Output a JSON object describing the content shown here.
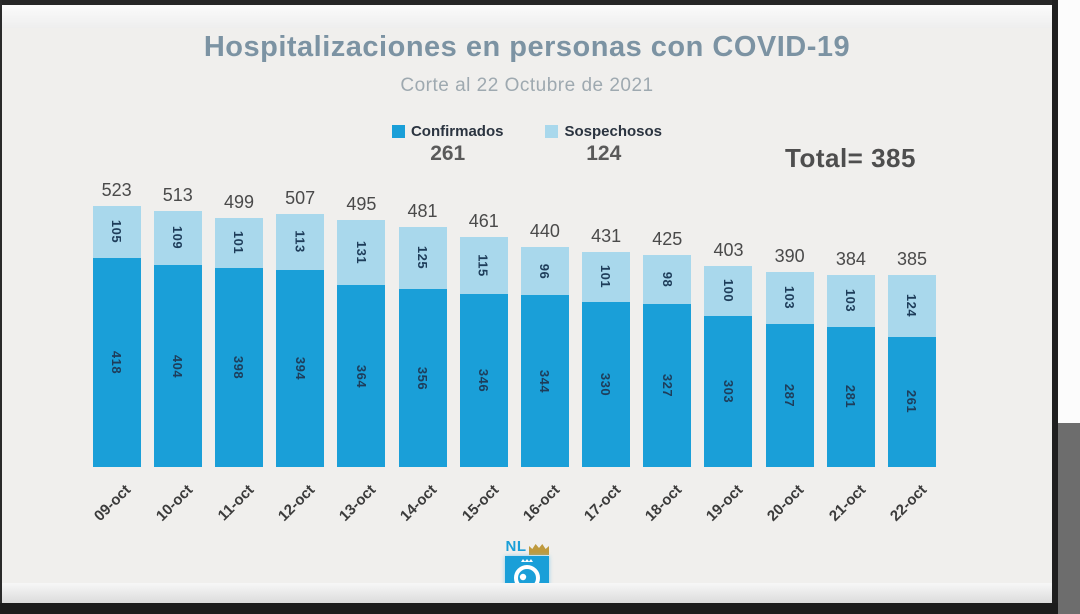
{
  "title": "Hospitalizaciones en personas con COVID-19",
  "subtitle": "Corte al 22 Octubre de 2021",
  "legend": {
    "confirmed_label": "Confirmados",
    "confirmed_value": "261",
    "suspected_label": "Sospechosos",
    "suspected_value": "124"
  },
  "total_text": "Total= 385",
  "logo": {
    "text": "NL"
  },
  "colors": {
    "confirmed": "#1a9fd8",
    "suspected": "#a9d8ec",
    "title": "#7c93a3",
    "in_bar_text": "#1e3d5a"
  },
  "chart_data": {
    "type": "bar",
    "stacked": true,
    "title": "Hospitalizaciones en personas con COVID-19",
    "subtitle": "Corte al 22 Octubre de 2021",
    "categories": [
      "09-oct",
      "10-oct",
      "11-oct",
      "12-oct",
      "13-oct",
      "14-oct",
      "15-oct",
      "16-oct",
      "17-oct",
      "18-oct",
      "19-oct",
      "20-oct",
      "21-oct",
      "22-oct"
    ],
    "series": [
      {
        "name": "Confirmados",
        "color": "#1a9fd8",
        "values": [
          418,
          404,
          398,
          394,
          364,
          356,
          346,
          344,
          330,
          327,
          303,
          287,
          281,
          261
        ]
      },
      {
        "name": "Sospechosos",
        "color": "#a9d8ec",
        "values": [
          105,
          109,
          101,
          113,
          131,
          125,
          115,
          96,
          101,
          98,
          100,
          103,
          103,
          124
        ]
      }
    ],
    "totals": [
      523,
      513,
      499,
      507,
      495,
      481,
      461,
      440,
      431,
      425,
      403,
      390,
      384,
      385
    ],
    "ylabel": "",
    "xlabel": "",
    "grid": false,
    "legend_position": "top",
    "value_labels": "inside-rotated",
    "total_labels": "above-bars"
  }
}
